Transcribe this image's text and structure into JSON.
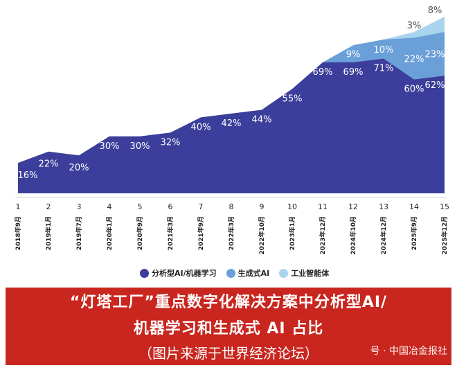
{
  "chart_data": {
    "type": "area",
    "stacked": true,
    "x": [
      "1",
      "2",
      "3",
      "4",
      "5",
      "6",
      "7",
      "8",
      "9",
      "10",
      "11",
      "12",
      "13",
      "14",
      "15"
    ],
    "x_dates": [
      "2018年9月",
      "2019年1月",
      "2019年7月",
      "2020年1月",
      "2020年9月",
      "2021年3月",
      "2021年9月",
      "2022年3月",
      "2022年10月",
      "2023年1月",
      "2023年12月",
      "2024年10月",
      "2024年12月",
      "2025年9月",
      "2025年12月"
    ],
    "ylim": [
      0,
      100
    ],
    "grid": false,
    "legend_position": "bottom-center",
    "series": [
      {
        "name": "分析型AI/机器学习",
        "color": "#3b3e9a",
        "values": [
          16,
          22,
          20,
          30,
          30,
          32,
          40,
          42,
          44,
          55,
          69,
          69,
          71,
          60,
          62
        ],
        "labels": [
          "16%",
          "22%",
          "20%",
          "30%",
          "30%",
          "32%",
          "40%",
          "42%",
          "44%",
          "55%",
          "69%",
          "69%",
          "71%",
          "60%",
          "62%"
        ]
      },
      {
        "name": "生成式AI",
        "color": "#6a9fd8",
        "values": [
          0,
          0,
          0,
          0,
          0,
          0,
          0,
          0,
          0,
          0,
          0,
          9,
          10,
          22,
          23
        ],
        "labels": [
          "",
          "",
          "",
          "",
          "",
          "",
          "",
          "",
          "",
          "",
          "",
          "9%",
          "10%",
          "22%",
          "23%"
        ]
      },
      {
        "name": "工业智能体",
        "color": "#a9d4ee",
        "values": [
          0,
          0,
          0,
          0,
          0,
          0,
          0,
          0,
          0,
          0,
          0,
          0,
          0,
          3,
          8
        ],
        "labels": [
          "",
          "",
          "",
          "",
          "",
          "",
          "",
          "",
          "",
          "",
          "",
          "",
          "",
          "3%",
          "8%"
        ]
      }
    ]
  },
  "banner": {
    "title_line1": "“灯塔工厂”重点数字化解决方案中分析型AI/",
    "title_line2": "机器学习和生成式 AI 占比",
    "source": "（图片来源于世界经济论坛）",
    "watermark": "号 · 中国冶金报社"
  }
}
